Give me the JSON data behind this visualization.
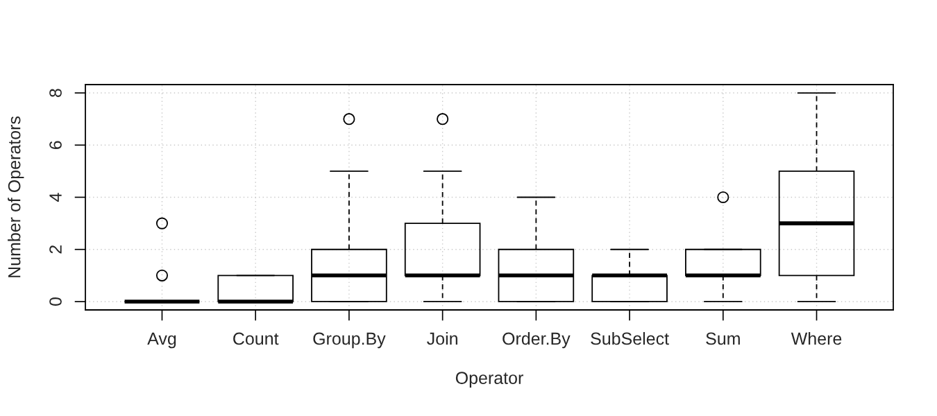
{
  "chart_data": {
    "type": "box",
    "xlabel": "Operator",
    "ylabel": "Number of Operators",
    "categories": [
      "Avg",
      "Count",
      "Group.By",
      "Join",
      "Order.By",
      "SubSelect",
      "Sum",
      "Where"
    ],
    "boxes": [
      {
        "low": 0,
        "q1": 0,
        "median": 0,
        "q3": 0,
        "high": 0,
        "outliers": [
          1,
          3
        ]
      },
      {
        "low": 0,
        "q1": 0,
        "median": 0,
        "q3": 1,
        "high": 1
      },
      {
        "low": 0,
        "q1": 0,
        "median": 1,
        "q3": 2,
        "high": 5,
        "outliers": [
          7
        ]
      },
      {
        "low": 0,
        "q1": 1,
        "median": 1,
        "q3": 3,
        "high": 5,
        "outliers": [
          7
        ]
      },
      {
        "low": 0,
        "q1": 0,
        "median": 1,
        "q3": 2,
        "high": 4
      },
      {
        "low": 0,
        "q1": 0,
        "median": 1,
        "q3": 1,
        "high": 2
      },
      {
        "low": 0,
        "q1": 1,
        "median": 1,
        "q3": 2,
        "high": 2,
        "outliers": [
          4
        ]
      },
      {
        "low": 0,
        "q1": 1,
        "median": 3,
        "q3": 5,
        "high": 8
      }
    ],
    "ylim": [
      -0.32,
      8.32
    ],
    "yticks": [
      0,
      2,
      4,
      6,
      8
    ],
    "grid": true,
    "marker": "circle"
  }
}
